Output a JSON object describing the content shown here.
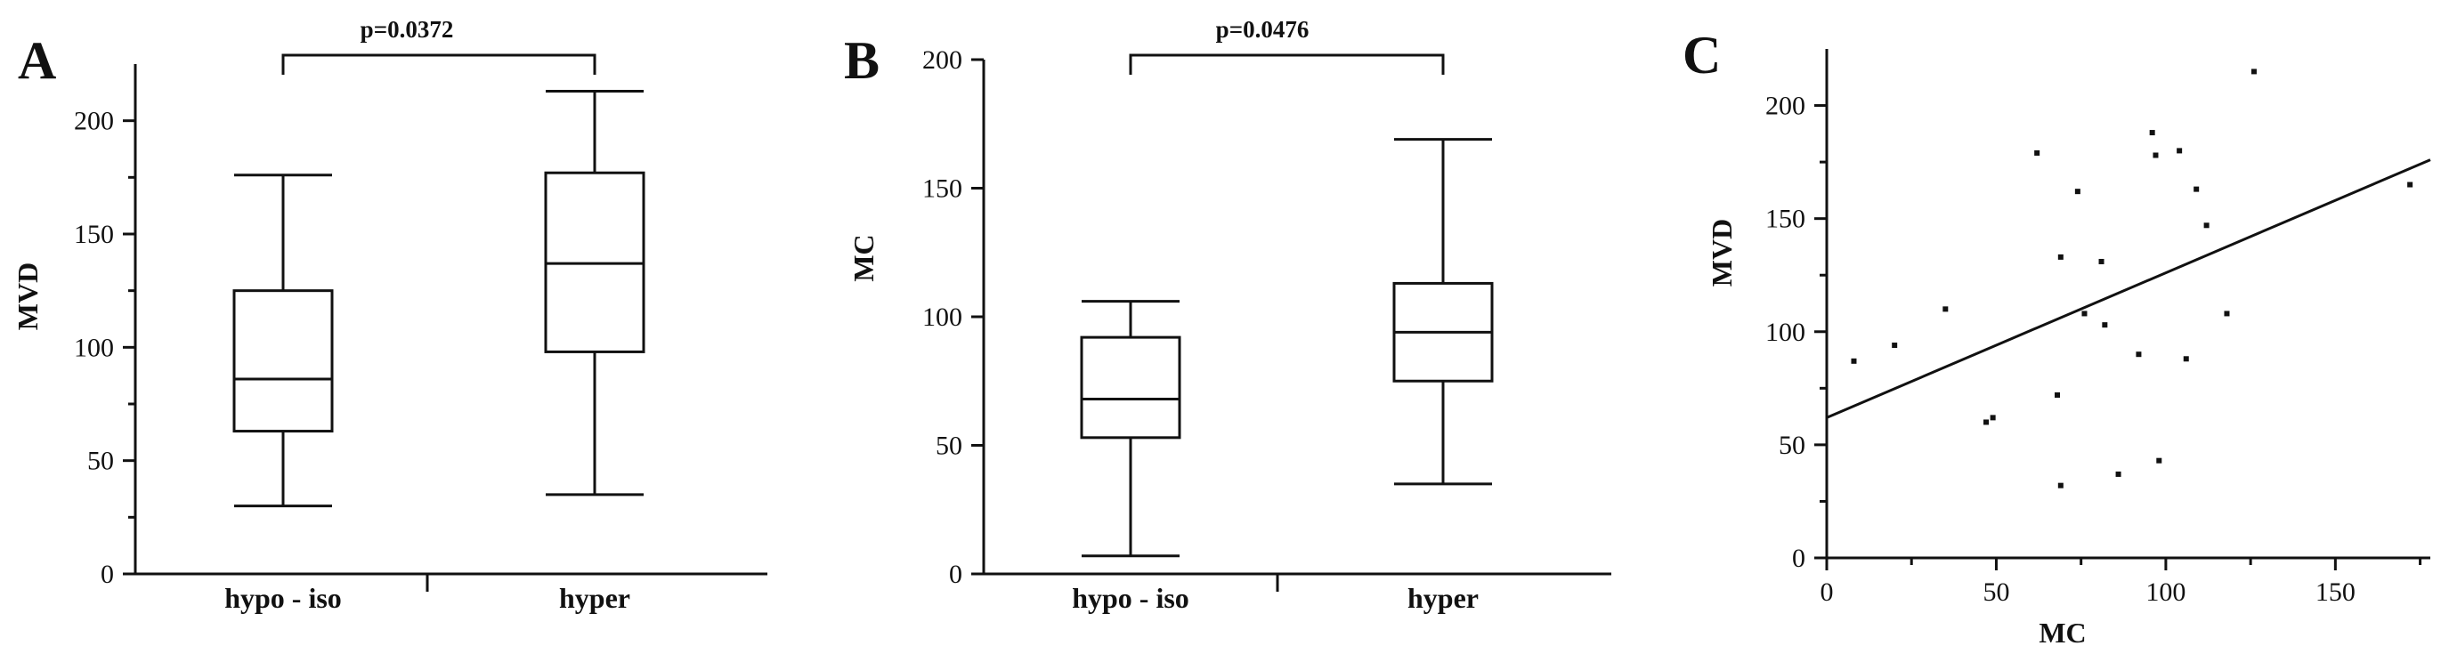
{
  "chart_data": [
    {
      "panel": "A",
      "type": "box",
      "ylabel": "MVD",
      "ylim": [
        0,
        225
      ],
      "yticks": [
        0,
        50,
        100,
        150,
        200
      ],
      "categories": [
        "hypo - iso",
        "hyper"
      ],
      "boxes": [
        {
          "category": "hypo - iso",
          "min": 30,
          "q1": 63,
          "median": 86,
          "q3": 125,
          "max": 176
        },
        {
          "category": "hyper",
          "min": 35,
          "q1": 98,
          "median": 137,
          "q3": 177,
          "max": 213
        }
      ],
      "annotation": "p=0.0372"
    },
    {
      "panel": "B",
      "type": "box",
      "ylabel": "MC",
      "ylim": [
        0,
        200
      ],
      "yticks": [
        0,
        50,
        100,
        150,
        200
      ],
      "categories": [
        "hypo - iso",
        "hyper"
      ],
      "boxes": [
        {
          "category": "hypo - iso",
          "min": 7,
          "q1": 53,
          "median": 68,
          "q3": 92,
          "max": 106
        },
        {
          "category": "hyper",
          "min": 35,
          "q1": 75,
          "median": 94,
          "q3": 113,
          "max": 169
        }
      ],
      "annotation": "p=0.0476"
    },
    {
      "panel": "C",
      "type": "scatter",
      "xlabel": "MC",
      "ylabel": "MVD",
      "xlim": [
        0,
        178
      ],
      "ylim": [
        0,
        225
      ],
      "xticks": [
        0,
        50,
        100,
        150
      ],
      "yticks": [
        0,
        50,
        100,
        150,
        200
      ],
      "points": [
        {
          "x": 8,
          "y": 87
        },
        {
          "x": 20,
          "y": 94
        },
        {
          "x": 35,
          "y": 110
        },
        {
          "x": 47,
          "y": 60
        },
        {
          "x": 49,
          "y": 62
        },
        {
          "x": 62,
          "y": 179
        },
        {
          "x": 68,
          "y": 72
        },
        {
          "x": 69,
          "y": 133
        },
        {
          "x": 69,
          "y": 32
        },
        {
          "x": 74,
          "y": 162
        },
        {
          "x": 76,
          "y": 108
        },
        {
          "x": 81,
          "y": 131
        },
        {
          "x": 82,
          "y": 103
        },
        {
          "x": 86,
          "y": 37
        },
        {
          "x": 92,
          "y": 90
        },
        {
          "x": 96,
          "y": 188
        },
        {
          "x": 97,
          "y": 178
        },
        {
          "x": 98,
          "y": 43
        },
        {
          "x": 104,
          "y": 180
        },
        {
          "x": 106,
          "y": 88
        },
        {
          "x": 109,
          "y": 163
        },
        {
          "x": 112,
          "y": 147
        },
        {
          "x": 118,
          "y": 108
        },
        {
          "x": 126,
          "y": 215
        },
        {
          "x": 172,
          "y": 165
        }
      ],
      "fit_line": {
        "x": [
          0,
          178
        ],
        "y": [
          62,
          176
        ]
      }
    }
  ],
  "panels": {
    "a": {
      "letter": "A",
      "ylabel": "MVD",
      "cat1": "hypo - iso",
      "cat2": "hyper",
      "pvalue": "p=0.0372"
    },
    "b": {
      "letter": "B",
      "ylabel": "MC",
      "cat1": "hypo - iso",
      "cat2": "hyper",
      "pvalue": "p=0.0476"
    },
    "c": {
      "letter": "C",
      "xlabel": "MC",
      "ylabel": "MVD"
    }
  }
}
